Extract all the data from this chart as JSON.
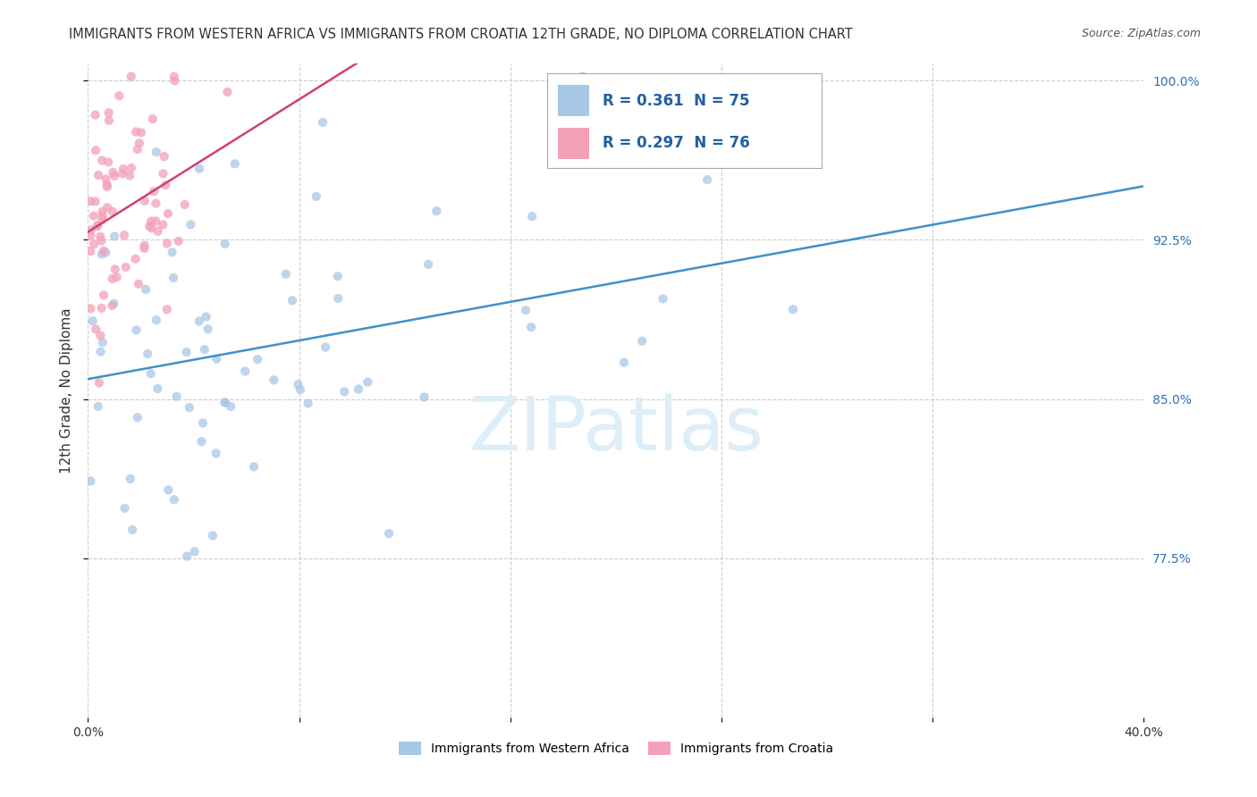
{
  "title": "IMMIGRANTS FROM WESTERN AFRICA VS IMMIGRANTS FROM CROATIA 12TH GRADE, NO DIPLOMA CORRELATION CHART",
  "source": "Source: ZipAtlas.com",
  "ylabel": "12th Grade, No Diploma",
  "xlim": [
    0.0,
    0.4
  ],
  "ylim": [
    0.7,
    1.008
  ],
  "yticks": [
    0.775,
    0.85,
    0.925,
    1.0
  ],
  "ytick_labels": [
    "77.5%",
    "85.0%",
    "92.5%",
    "100.0%"
  ],
  "xtick_positions": [
    0.0,
    0.08,
    0.16,
    0.24,
    0.32,
    0.4
  ],
  "legend_R_blue": "0.361",
  "legend_N_blue": "75",
  "legend_R_pink": "0.297",
  "legend_N_pink": "76",
  "blue_color": "#a8c8e8",
  "pink_color": "#f4a0b8",
  "blue_line_color": "#4090c8",
  "pink_line_color": "#d04070",
  "axis_label_color": "#3070b0",
  "text_color": "#333333",
  "watermark_color": "#ddeef8",
  "legend_text_color": "#2060a0",
  "watermark": "ZIPatlas"
}
